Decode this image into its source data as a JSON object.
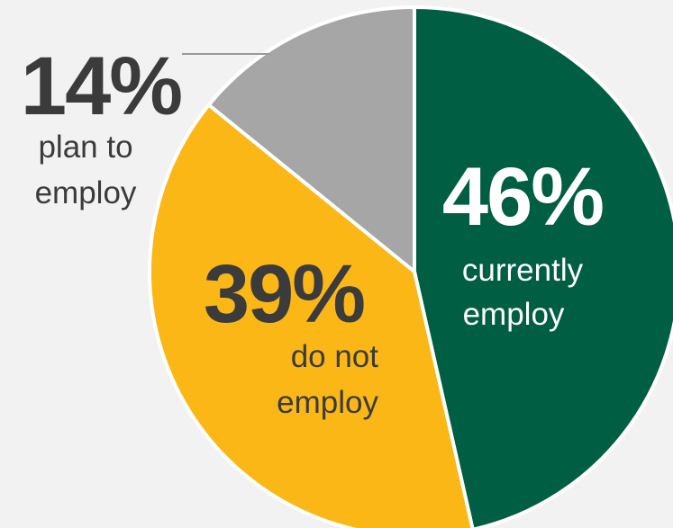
{
  "chart_data": {
    "type": "pie",
    "slices": [
      {
        "value": 46,
        "label": "46%",
        "line1": "currently",
        "line2": "employ",
        "color": "#005e43"
      },
      {
        "value": 39,
        "label": "39%",
        "line1": "do not",
        "line2": "employ",
        "color": "#fbb716"
      },
      {
        "value": 14,
        "label": "14%",
        "line1": "plan to",
        "line2": "employ",
        "color": "#a6a6a6"
      }
    ],
    "text_colors": {
      "dark": "#3b3b3b",
      "light": "#ffffff"
    },
    "background": "#f2f2f2",
    "legend": "none"
  }
}
